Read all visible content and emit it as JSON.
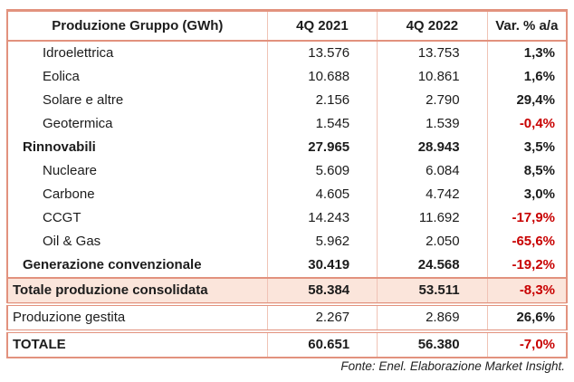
{
  "colors": {
    "accent": "#e2927e",
    "accent_light": "#f0c3b5",
    "shade": "#fbe5db",
    "negative": "#c80000"
  },
  "chart_data": {
    "type": "table",
    "title": "Produzione Gruppo (GWh)",
    "columns": [
      "4Q 2021",
      "4Q 2022",
      "Var. % a/a"
    ],
    "rows": [
      {
        "label": "Idroelettrica",
        "v2021": "13.576",
        "v2022": "13.753",
        "var": "1,3%",
        "kind": "sub"
      },
      {
        "label": "Eolica",
        "v2021": "10.688",
        "v2022": "10.861",
        "var": "1,6%",
        "kind": "sub"
      },
      {
        "label": "Solare e altre",
        "v2021": "2.156",
        "v2022": "2.790",
        "var": "29,4%",
        "kind": "sub"
      },
      {
        "label": "Geotermica",
        "v2021": "1.545",
        "v2022": "1.539",
        "var": "-0,4%",
        "kind": "sub"
      },
      {
        "label": "Rinnovabili",
        "v2021": "27.965",
        "v2022": "28.943",
        "var": "3,5%",
        "kind": "group"
      },
      {
        "label": "Nucleare",
        "v2021": "5.609",
        "v2022": "6.084",
        "var": "8,5%",
        "kind": "sub"
      },
      {
        "label": "Carbone",
        "v2021": "4.605",
        "v2022": "4.742",
        "var": "3,0%",
        "kind": "sub"
      },
      {
        "label": "CCGT",
        "v2021": "14.243",
        "v2022": "11.692",
        "var": "-17,9%",
        "kind": "sub"
      },
      {
        "label": "Oil & Gas",
        "v2021": "5.962",
        "v2022": "2.050",
        "var": "-65,6%",
        "kind": "sub"
      },
      {
        "label": "Generazione convenzionale",
        "v2021": "30.419",
        "v2022": "24.568",
        "var": "-19,2%",
        "kind": "group"
      },
      {
        "label": "Totale produzione consolidata",
        "v2021": "58.384",
        "v2022": "53.511",
        "var": "-8,3%",
        "kind": "consolidated"
      },
      {
        "label": "Produzione gestita",
        "v2021": "2.267",
        "v2022": "2.869",
        "var": "26,6%",
        "kind": "managed"
      },
      {
        "label": "TOTALE",
        "v2021": "60.651",
        "v2022": "56.380",
        "var": "-7,0%",
        "kind": "grand"
      }
    ]
  },
  "footer": {
    "source": "Fonte: Enel. Elaborazione Market Insight."
  }
}
